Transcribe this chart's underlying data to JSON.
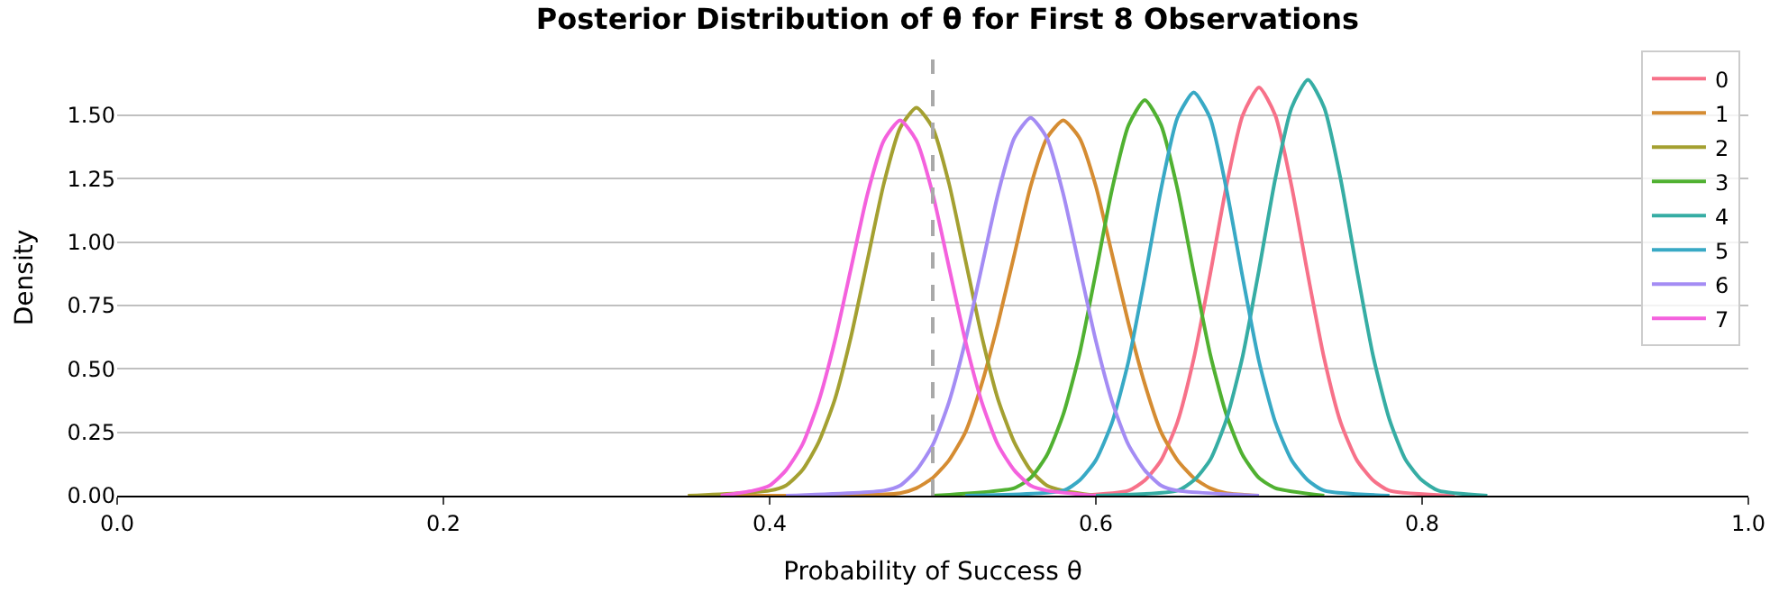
{
  "chart_data": {
    "type": "line",
    "title": "Posterior Distribution of θ for First 8 Observations",
    "xlabel": "Probability of Success θ",
    "ylabel": "Density",
    "xlim": [
      0,
      1
    ],
    "xticks": [
      {
        "value": 0,
        "label": "0.0"
      },
      {
        "value": 0.2,
        "label": "0.2"
      },
      {
        "value": 0.4,
        "label": "0.4"
      },
      {
        "value": 0.6,
        "label": "0.6"
      },
      {
        "value": 0.8,
        "label": "0.8"
      },
      {
        "value": 1,
        "label": "1.0"
      }
    ],
    "ylim": [
      0,
      1.72
    ],
    "yticks": [
      {
        "value": 0,
        "label": "0.00"
      },
      {
        "value": 0.25,
        "label": "0.25"
      },
      {
        "value": 0.5,
        "label": "0.50"
      },
      {
        "value": 0.75,
        "label": "0.75"
      },
      {
        "value": 1,
        "label": "1.00"
      },
      {
        "value": 1.25,
        "label": "1.25"
      },
      {
        "value": 1.5,
        "label": "1.50"
      }
    ],
    "grid": "y",
    "legend": "top right",
    "line_style": "solid",
    "marker": "none",
    "ref_lines": [
      {
        "axis": "x",
        "value": 0.5,
        "label": null,
        "color": "#a9a9a9",
        "line_style": "dashed"
      }
    ],
    "series": [
      {
        "name": "0",
        "color": "#f77189",
        "x": [
          0.59,
          0.62,
          0.63,
          0.64,
          0.65,
          0.66,
          0.67,
          0.68,
          0.69,
          0.7,
          0.71,
          0.72,
          0.73,
          0.74,
          0.75,
          0.76,
          0.77,
          0.78,
          0.82
        ],
        "values": [
          0,
          0.02,
          0.06,
          0.14,
          0.29,
          0.54,
          0.87,
          1.22,
          1.5,
          1.61,
          1.5,
          1.22,
          0.87,
          0.54,
          0.29,
          0.14,
          0.06,
          0.02,
          0
        ]
      },
      {
        "name": "1",
        "color": "#d58c32",
        "x": [
          0.35,
          0.48,
          0.49,
          0.5,
          0.51,
          0.52,
          0.53,
          0.54,
          0.55,
          0.56,
          0.57,
          0.58,
          0.59,
          0.6,
          0.61,
          0.62,
          0.63,
          0.64,
          0.65,
          0.66,
          0.67,
          0.68,
          0.7
        ],
        "values": [
          0,
          0.01,
          0.03,
          0.07,
          0.14,
          0.25,
          0.44,
          0.68,
          0.95,
          1.22,
          1.41,
          1.48,
          1.41,
          1.22,
          0.95,
          0.68,
          0.44,
          0.25,
          0.14,
          0.07,
          0.03,
          0.01,
          0
        ]
      },
      {
        "name": "2",
        "color": "#a4a031",
        "x": [
          0.35,
          0.4,
          0.41,
          0.42,
          0.43,
          0.44,
          0.45,
          0.46,
          0.47,
          0.48,
          0.49,
          0.5,
          0.51,
          0.52,
          0.53,
          0.54,
          0.55,
          0.56,
          0.57,
          0.58,
          0.6
        ],
        "values": [
          0,
          0.02,
          0.04,
          0.1,
          0.21,
          0.38,
          0.63,
          0.93,
          1.23,
          1.45,
          1.53,
          1.45,
          1.23,
          0.93,
          0.63,
          0.38,
          0.21,
          0.1,
          0.04,
          0.02,
          0
        ]
      },
      {
        "name": "3",
        "color": "#50b131",
        "x": [
          0.5,
          0.55,
          0.56,
          0.57,
          0.58,
          0.59,
          0.6,
          0.61,
          0.62,
          0.63,
          0.64,
          0.65,
          0.66,
          0.67,
          0.68,
          0.69,
          0.7,
          0.71,
          0.74
        ],
        "values": [
          0,
          0.03,
          0.07,
          0.16,
          0.32,
          0.56,
          0.88,
          1.21,
          1.46,
          1.56,
          1.46,
          1.21,
          0.88,
          0.56,
          0.32,
          0.16,
          0.07,
          0.03,
          0
        ]
      },
      {
        "name": "4",
        "color": "#36ada4",
        "x": [
          0.6,
          0.65,
          0.66,
          0.67,
          0.68,
          0.69,
          0.7,
          0.71,
          0.72,
          0.73,
          0.74,
          0.75,
          0.76,
          0.77,
          0.78,
          0.79,
          0.8,
          0.81,
          0.84
        ],
        "values": [
          0,
          0.02,
          0.06,
          0.14,
          0.3,
          0.55,
          0.89,
          1.25,
          1.53,
          1.64,
          1.53,
          1.25,
          0.89,
          0.55,
          0.3,
          0.14,
          0.06,
          0.02,
          0
        ]
      },
      {
        "name": "5",
        "color": "#38a9c5",
        "x": [
          0.52,
          0.58,
          0.59,
          0.6,
          0.61,
          0.62,
          0.63,
          0.64,
          0.65,
          0.66,
          0.67,
          0.68,
          0.69,
          0.7,
          0.71,
          0.72,
          0.73,
          0.74,
          0.78
        ],
        "values": [
          0,
          0.02,
          0.06,
          0.14,
          0.29,
          0.53,
          0.86,
          1.21,
          1.49,
          1.59,
          1.49,
          1.21,
          0.86,
          0.53,
          0.29,
          0.14,
          0.06,
          0.02,
          0
        ]
      },
      {
        "name": "6",
        "color": "#a48cf4",
        "x": [
          0.41,
          0.47,
          0.48,
          0.49,
          0.5,
          0.51,
          0.52,
          0.53,
          0.54,
          0.55,
          0.56,
          0.57,
          0.58,
          0.59,
          0.6,
          0.61,
          0.62,
          0.63,
          0.64,
          0.65,
          0.7
        ],
        "values": [
          0,
          0.02,
          0.04,
          0.1,
          0.2,
          0.37,
          0.61,
          0.9,
          1.19,
          1.41,
          1.49,
          1.41,
          1.19,
          0.9,
          0.61,
          0.37,
          0.2,
          0.1,
          0.04,
          0.02,
          0
        ]
      },
      {
        "name": "7",
        "color": "#f461dd",
        "x": [
          0.37,
          0.39,
          0.4,
          0.41,
          0.42,
          0.43,
          0.44,
          0.45,
          0.46,
          0.47,
          0.48,
          0.49,
          0.5,
          0.51,
          0.52,
          0.53,
          0.54,
          0.55,
          0.56,
          0.57,
          0.6
        ],
        "values": [
          0,
          0.02,
          0.04,
          0.1,
          0.2,
          0.37,
          0.61,
          0.9,
          1.19,
          1.4,
          1.48,
          1.4,
          1.19,
          0.9,
          0.61,
          0.37,
          0.2,
          0.1,
          0.04,
          0.02,
          0
        ]
      }
    ]
  }
}
